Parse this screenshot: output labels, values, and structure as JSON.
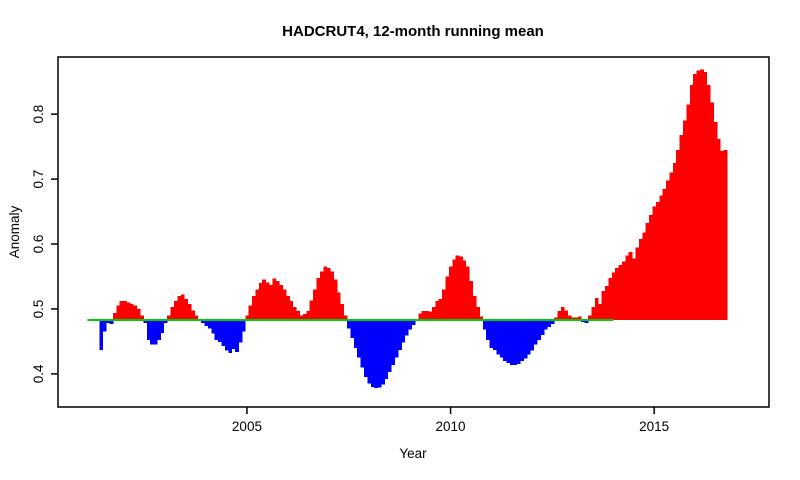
{
  "chart_data": {
    "type": "bar",
    "title": "HADCRUT4, 12-month running mean",
    "xlabel": "Year",
    "ylabel": "Anomaly",
    "x_start": 2001.4167,
    "x_step_years": 0.0833333,
    "values": [
      0.437,
      0.465,
      0.478,
      0.477,
      0.494,
      0.505,
      0.512,
      0.512,
      0.51,
      0.508,
      0.505,
      0.5,
      0.49,
      0.478,
      0.452,
      0.445,
      0.445,
      0.452,
      0.463,
      0.478,
      0.49,
      0.503,
      0.512,
      0.52,
      0.522,
      0.515,
      0.508,
      0.498,
      0.49,
      0.483,
      0.478,
      0.474,
      0.47,
      0.462,
      0.452,
      0.449,
      0.443,
      0.436,
      0.432,
      0.438,
      0.434,
      0.448,
      0.465,
      0.49,
      0.505,
      0.52,
      0.53,
      0.54,
      0.545,
      0.541,
      0.537,
      0.547,
      0.543,
      0.537,
      0.53,
      0.52,
      0.512,
      0.503,
      0.497,
      0.49,
      0.492,
      0.497,
      0.513,
      0.53,
      0.548,
      0.558,
      0.565,
      0.563,
      0.558,
      0.545,
      0.525,
      0.508,
      0.49,
      0.47,
      0.455,
      0.44,
      0.425,
      0.41,
      0.395,
      0.385,
      0.38,
      0.378,
      0.379,
      0.384,
      0.392,
      0.403,
      0.414,
      0.425,
      0.437,
      0.448,
      0.459,
      0.468,
      0.475,
      0.483,
      0.493,
      0.497,
      0.497,
      0.496,
      0.503,
      0.512,
      0.515,
      0.53,
      0.55,
      0.565,
      0.576,
      0.582,
      0.581,
      0.575,
      0.565,
      0.543,
      0.52,
      0.503,
      0.488,
      0.468,
      0.452,
      0.44,
      0.437,
      0.43,
      0.425,
      0.42,
      0.417,
      0.414,
      0.414,
      0.415,
      0.42,
      0.424,
      0.43,
      0.436,
      0.445,
      0.452,
      0.46,
      0.468,
      0.472,
      0.477,
      0.487,
      0.497,
      0.503,
      0.498,
      0.49,
      0.487,
      0.487,
      0.488,
      0.48,
      0.478,
      0.49,
      0.503,
      0.517,
      0.508,
      0.528,
      0.535,
      0.548,
      0.556,
      0.563,
      0.568,
      0.573,
      0.582,
      0.588,
      0.578,
      0.595,
      0.608,
      0.618,
      0.632,
      0.645,
      0.658,
      0.665,
      0.675,
      0.685,
      0.698,
      0.71,
      0.725,
      0.745,
      0.768,
      0.79,
      0.815,
      0.845,
      0.862,
      0.867,
      0.869,
      0.865,
      0.845,
      0.818,
      0.788,
      0.762,
      0.743,
      0.745
    ],
    "baseline": 0.483,
    "baseline_line": {
      "x_from": 2001.08,
      "x_to": 2014.0,
      "color": "#00CD00"
    },
    "colors": {
      "above": "#FF0000",
      "below": "#0000FF",
      "axis": "#000000"
    },
    "xlim": [
      2000.36,
      2017.82
    ],
    "ylim": [
      0.349,
      0.888
    ],
    "xticks": [
      2005,
      2010,
      2015
    ],
    "xtick_labels": [
      "2005",
      "2010",
      "2015"
    ],
    "yticks": [
      0.4,
      0.5,
      0.6,
      0.7,
      0.8
    ],
    "ytick_labels": [
      "0.4",
      "0.5",
      "0.6",
      "0.7",
      "0.8"
    ],
    "grid": false,
    "legend": null
  }
}
